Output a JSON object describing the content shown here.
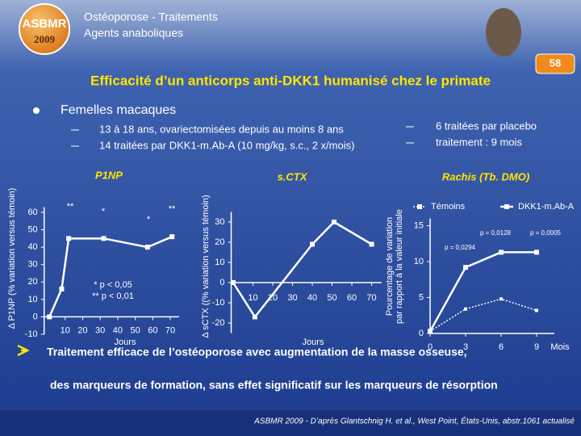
{
  "slide": {
    "logo": {
      "name": "ASBMR",
      "year": "2009"
    },
    "header": [
      "Ostéoporose - Traitements",
      "Agents anaboliques"
    ],
    "page_number": "58",
    "headline": "Efficacité d’un anticorps anti-DKK1 humanisé chez le primate",
    "bullet": "Femelles macaques",
    "details_left": [
      "13 à 18 ans, ovariectomisées depuis au moins 8 ans",
      "14 traitées par DKK1-m.Ab-A (10 mg/kg, s.c., 2 x/mois)"
    ],
    "details_right": [
      "6 traitées par placebo",
      "traitement : 9 mois"
    ],
    "conclusion": [
      "Traitement efficace de l’ostéoporose avec augmentation de la masse osseuse,",
      "des marqueurs de formation, sans effet significatif sur les marqueurs de résorption"
    ],
    "footer": "ASBMR 2009 - D’après Glantschnig H. et al., West Point, États-Unis, abstr.1061 actualisé"
  },
  "chart_data": [
    {
      "type": "line",
      "title": "P1NP",
      "ylabel": [
        "Δ P1NP (% variation versus témoin)"
      ],
      "xlabel": "Jours",
      "series": [
        {
          "name": null,
          "color": "#ffffff",
          "x": [
            1,
            8,
            12,
            32,
            57,
            71
          ],
          "values": [
            0,
            16,
            45,
            45,
            40,
            46
          ]
        }
      ],
      "xlim": [
        -2,
        75
      ],
      "xticks": [
        10,
        20,
        30,
        40,
        50,
        60,
        70
      ],
      "ylim": [
        -10,
        63
      ],
      "yticks": [
        -10,
        0,
        10,
        20,
        30,
        40,
        50,
        60
      ],
      "annotations": [
        "**",
        "*",
        "*",
        "**",
        "* p < 0,05",
        "** p < 0,01"
      ]
    },
    {
      "type": "line",
      "title": "s.CTX",
      "ylabel": [
        "Δ sCTX ((% variation versus témoin)"
      ],
      "xlabel": "Jours",
      "series": [
        {
          "name": null,
          "color": "#ffffff",
          "x": [
            0,
            11,
            40,
            51,
            70
          ],
          "values": [
            0,
            -17,
            19,
            30,
            19
          ]
        }
      ],
      "xlim": [
        -1,
        75
      ],
      "xticks": [
        10,
        20,
        30,
        40,
        50,
        60,
        70
      ],
      "ylim": [
        -25,
        35
      ],
      "yticks": [
        -20,
        -10,
        0,
        10,
        20,
        30
      ],
      "annotations": []
    },
    {
      "type": "line",
      "title": "Rachis (Tb. DMO)",
      "ylabel": [
        "Pourcentage de variation",
        "par rapport à la valeur initiale"
      ],
      "xlabel": "Mois",
      "series": [
        {
          "name": "Témoins",
          "color": "#ffffff",
          "dashed": true,
          "x": [
            0,
            3,
            6,
            9
          ],
          "values": [
            0.3,
            3.4,
            4.8,
            3.2
          ]
        },
        {
          "name": "DKK1-m.Ab-A",
          "color": "#ffffff",
          "dashed": false,
          "x": [
            0,
            3,
            6,
            9
          ],
          "values": [
            0.3,
            9.2,
            11.3,
            11.3
          ]
        }
      ],
      "xlim": [
        0,
        10.5
      ],
      "xticks": [
        0,
        3,
        6,
        9
      ],
      "ylim": [
        0,
        16
      ],
      "yticks": [
        0,
        5,
        10,
        15
      ],
      "annotations": [
        "p = 0,0294",
        "p = 0,0128",
        "p = 0,0005"
      ]
    }
  ]
}
